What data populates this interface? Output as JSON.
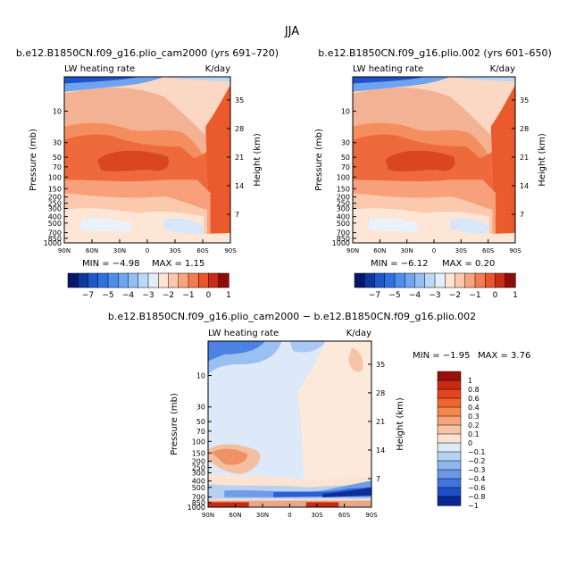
{
  "figure_title": "JJA",
  "chart_data": [
    {
      "type": "heatmap",
      "title": "b.e12.B1850CN.f09_g16.plio_cam2000 (yrs 691–720)",
      "field_label": "LW heating rate",
      "units": "K/day",
      "xlabel": "",
      "ylabel": "Pressure (mb)",
      "y2label": "Height (km)",
      "x_ticks": [
        "90N",
        "60N",
        "30N",
        "0",
        "30S",
        "60S",
        "90S"
      ],
      "y_ticks": [
        "10",
        "30",
        "50",
        "70",
        "100",
        "150",
        "200",
        "250",
        "300",
        "400",
        "500",
        "700",
        "850",
        "1000"
      ],
      "y2_ticks": [
        "35",
        "28",
        "21",
        "14",
        "7"
      ],
      "min_label": "MIN = −4.98",
      "max_label": "MAX = 1.15",
      "colorbar_labels": [
        "−7",
        "−5",
        "−4",
        "−3",
        "−2",
        "−1",
        "0",
        "1"
      ]
    },
    {
      "type": "heatmap",
      "title": "b.e12.B1850CN.f09_g16.plio.002 (yrs 601–650)",
      "field_label": "LW heating rate",
      "units": "K/day",
      "xlabel": "",
      "ylabel": "Pressure (mb)",
      "y2label": "Height (km)",
      "x_ticks": [
        "90N",
        "60N",
        "30N",
        "0",
        "30S",
        "60S",
        "90S"
      ],
      "y_ticks": [
        "10",
        "30",
        "50",
        "70",
        "100",
        "150",
        "200",
        "250",
        "300",
        "400",
        "500",
        "700",
        "850",
        "1000"
      ],
      "y2_ticks": [
        "35",
        "28",
        "21",
        "14",
        "7"
      ],
      "min_label": "MIN = −6.12",
      "max_label": "MAX = 0.20",
      "colorbar_labels": [
        "−7",
        "−5",
        "−4",
        "−3",
        "−2",
        "−1",
        "0",
        "1"
      ]
    },
    {
      "type": "heatmap",
      "title": "b.e12.B1850CN.f09_g16.plio_cam2000 − b.e12.B1850CN.f09_g16.plio.002",
      "field_label": "LW heating rate",
      "units": "K/day",
      "xlabel": "",
      "ylabel": "Pressure (mb)",
      "y2label": "Height (km)",
      "x_ticks": [
        "90N",
        "60N",
        "30N",
        "0",
        "30S",
        "60S",
        "90S"
      ],
      "y_ticks": [
        "10",
        "30",
        "50",
        "70",
        "100",
        "150",
        "200",
        "250",
        "300",
        "400",
        "500",
        "700",
        "850",
        "1000"
      ],
      "y2_ticks": [
        "35",
        "28",
        "21",
        "14",
        "7"
      ],
      "min_label": "MIN = −1.95",
      "max_label": "MAX = 3.76",
      "colorbar_labels": [
        "1",
        "0.8",
        "0.6",
        "0.4",
        "0.3",
        "0.2",
        "0.1",
        "0",
        "−0.1",
        "−0.2",
        "−0.3",
        "−0.4",
        "−0.6",
        "−0.8",
        "−1"
      ]
    }
  ],
  "colors": {
    "cb1": [
      "#08156b",
      "#10369e",
      "#1d57c9",
      "#2f71e0",
      "#4d8deb",
      "#6fa6ef",
      "#94bff3",
      "#bcd8f7",
      "#e3eefb",
      "#fde5d4",
      "#fbc8ac",
      "#f8a57f",
      "#f27d53",
      "#e8562e",
      "#c92d16",
      "#8e0c09"
    ],
    "cb2": [
      "#9a0f0b",
      "#c92a12",
      "#e5451e",
      "#f1652f",
      "#f58750",
      "#f7a57b",
      "#f9c4a2",
      "#fde2cf",
      "#dbe9f8",
      "#b7d2f3",
      "#8fb6ee",
      "#6a98e7",
      "#3f74dd",
      "#1f4fc8",
      "#0b2792"
    ]
  }
}
